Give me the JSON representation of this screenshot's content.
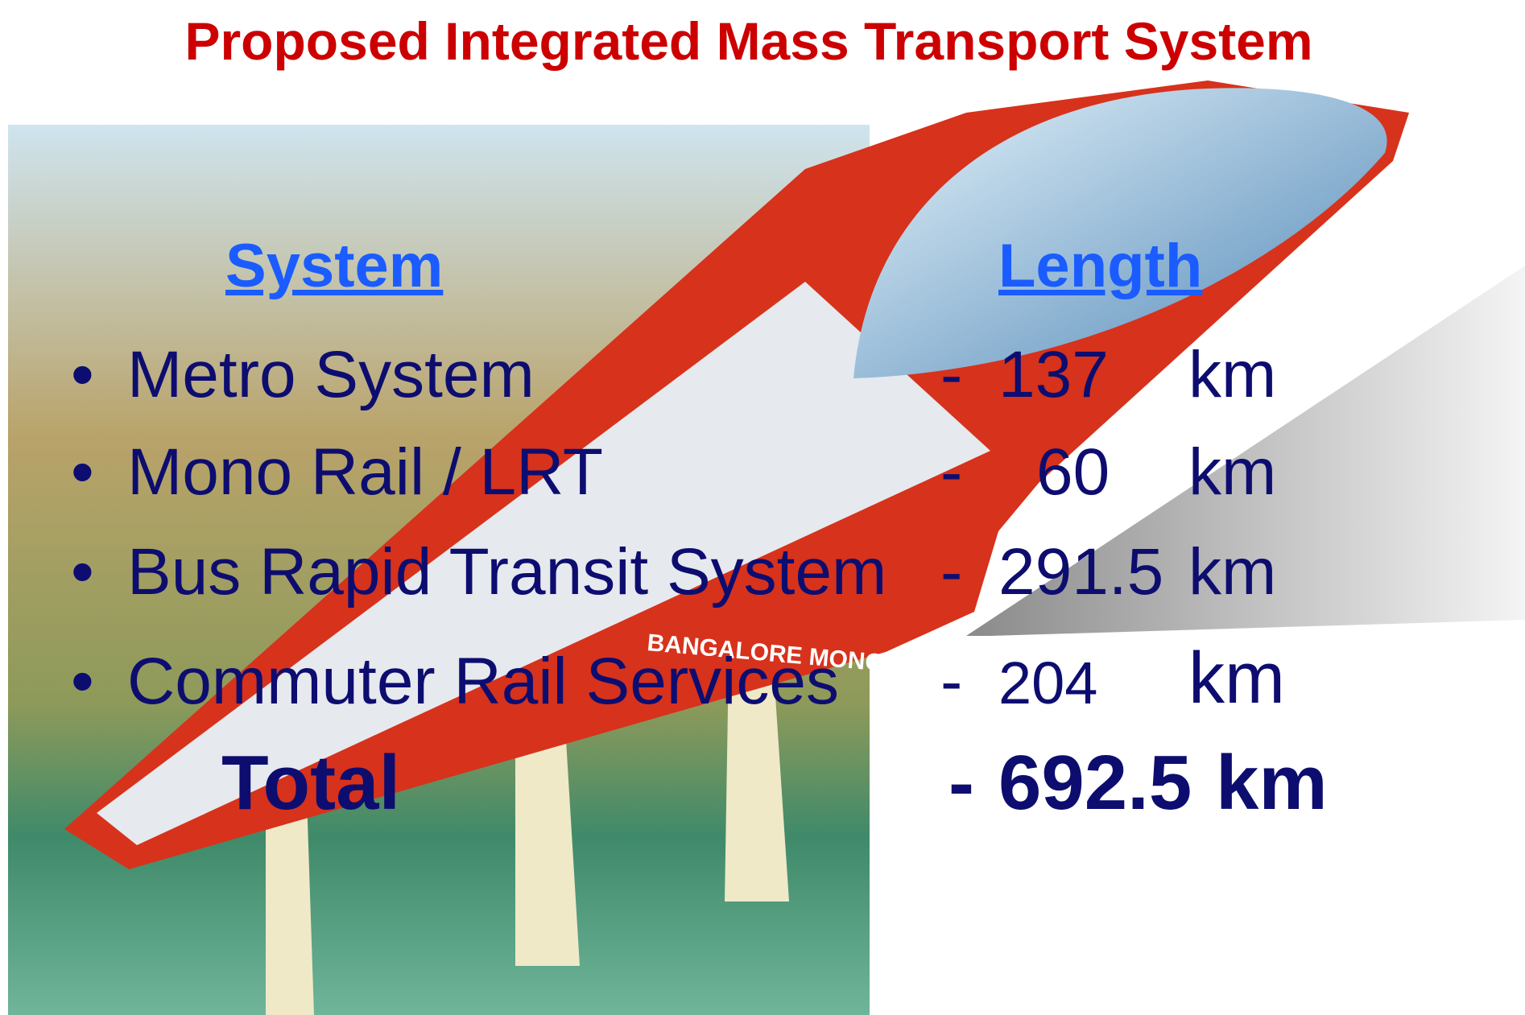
{
  "header": {
    "title": "Proposed Integrated Mass Transport System"
  },
  "table": {
    "columns": [
      "System",
      "Length"
    ],
    "rows": [
      {
        "label": "Metro System",
        "dash": "-",
        "value": "137",
        "unit": "km"
      },
      {
        "label": "Mono Rail / LRT",
        "dash": "-",
        "value": "60",
        "unit": "km"
      },
      {
        "label": "Bus Rapid Transit System",
        "dash": "-",
        "value": "291.5",
        "unit": "km"
      },
      {
        "label": "Commuter Rail Services",
        "dash": "-",
        "value": "204",
        "unit": "km"
      }
    ],
    "total": {
      "label": "Total",
      "dash": "-",
      "value": "692.5",
      "unit": "km"
    }
  },
  "image": {
    "train_text": "BANGALORE MONO RAIL"
  }
}
